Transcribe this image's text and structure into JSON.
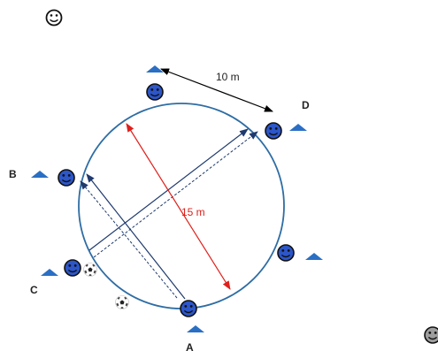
{
  "labels": {
    "a": "A",
    "b": "B",
    "c": "C",
    "d": "D"
  },
  "measurements": {
    "side_distance": "10 m",
    "diameter": "15 m"
  },
  "colors": {
    "circle": "#2e6da4",
    "cone": "#2a6fc4",
    "player_face": "#2c56c9",
    "arrow_pass": "#1f3a6e",
    "diameter": "#e0201b",
    "distance": "#000000"
  },
  "icons": [
    "smiley-icon",
    "player-icon",
    "cone-icon",
    "soccer-ball-icon"
  ]
}
